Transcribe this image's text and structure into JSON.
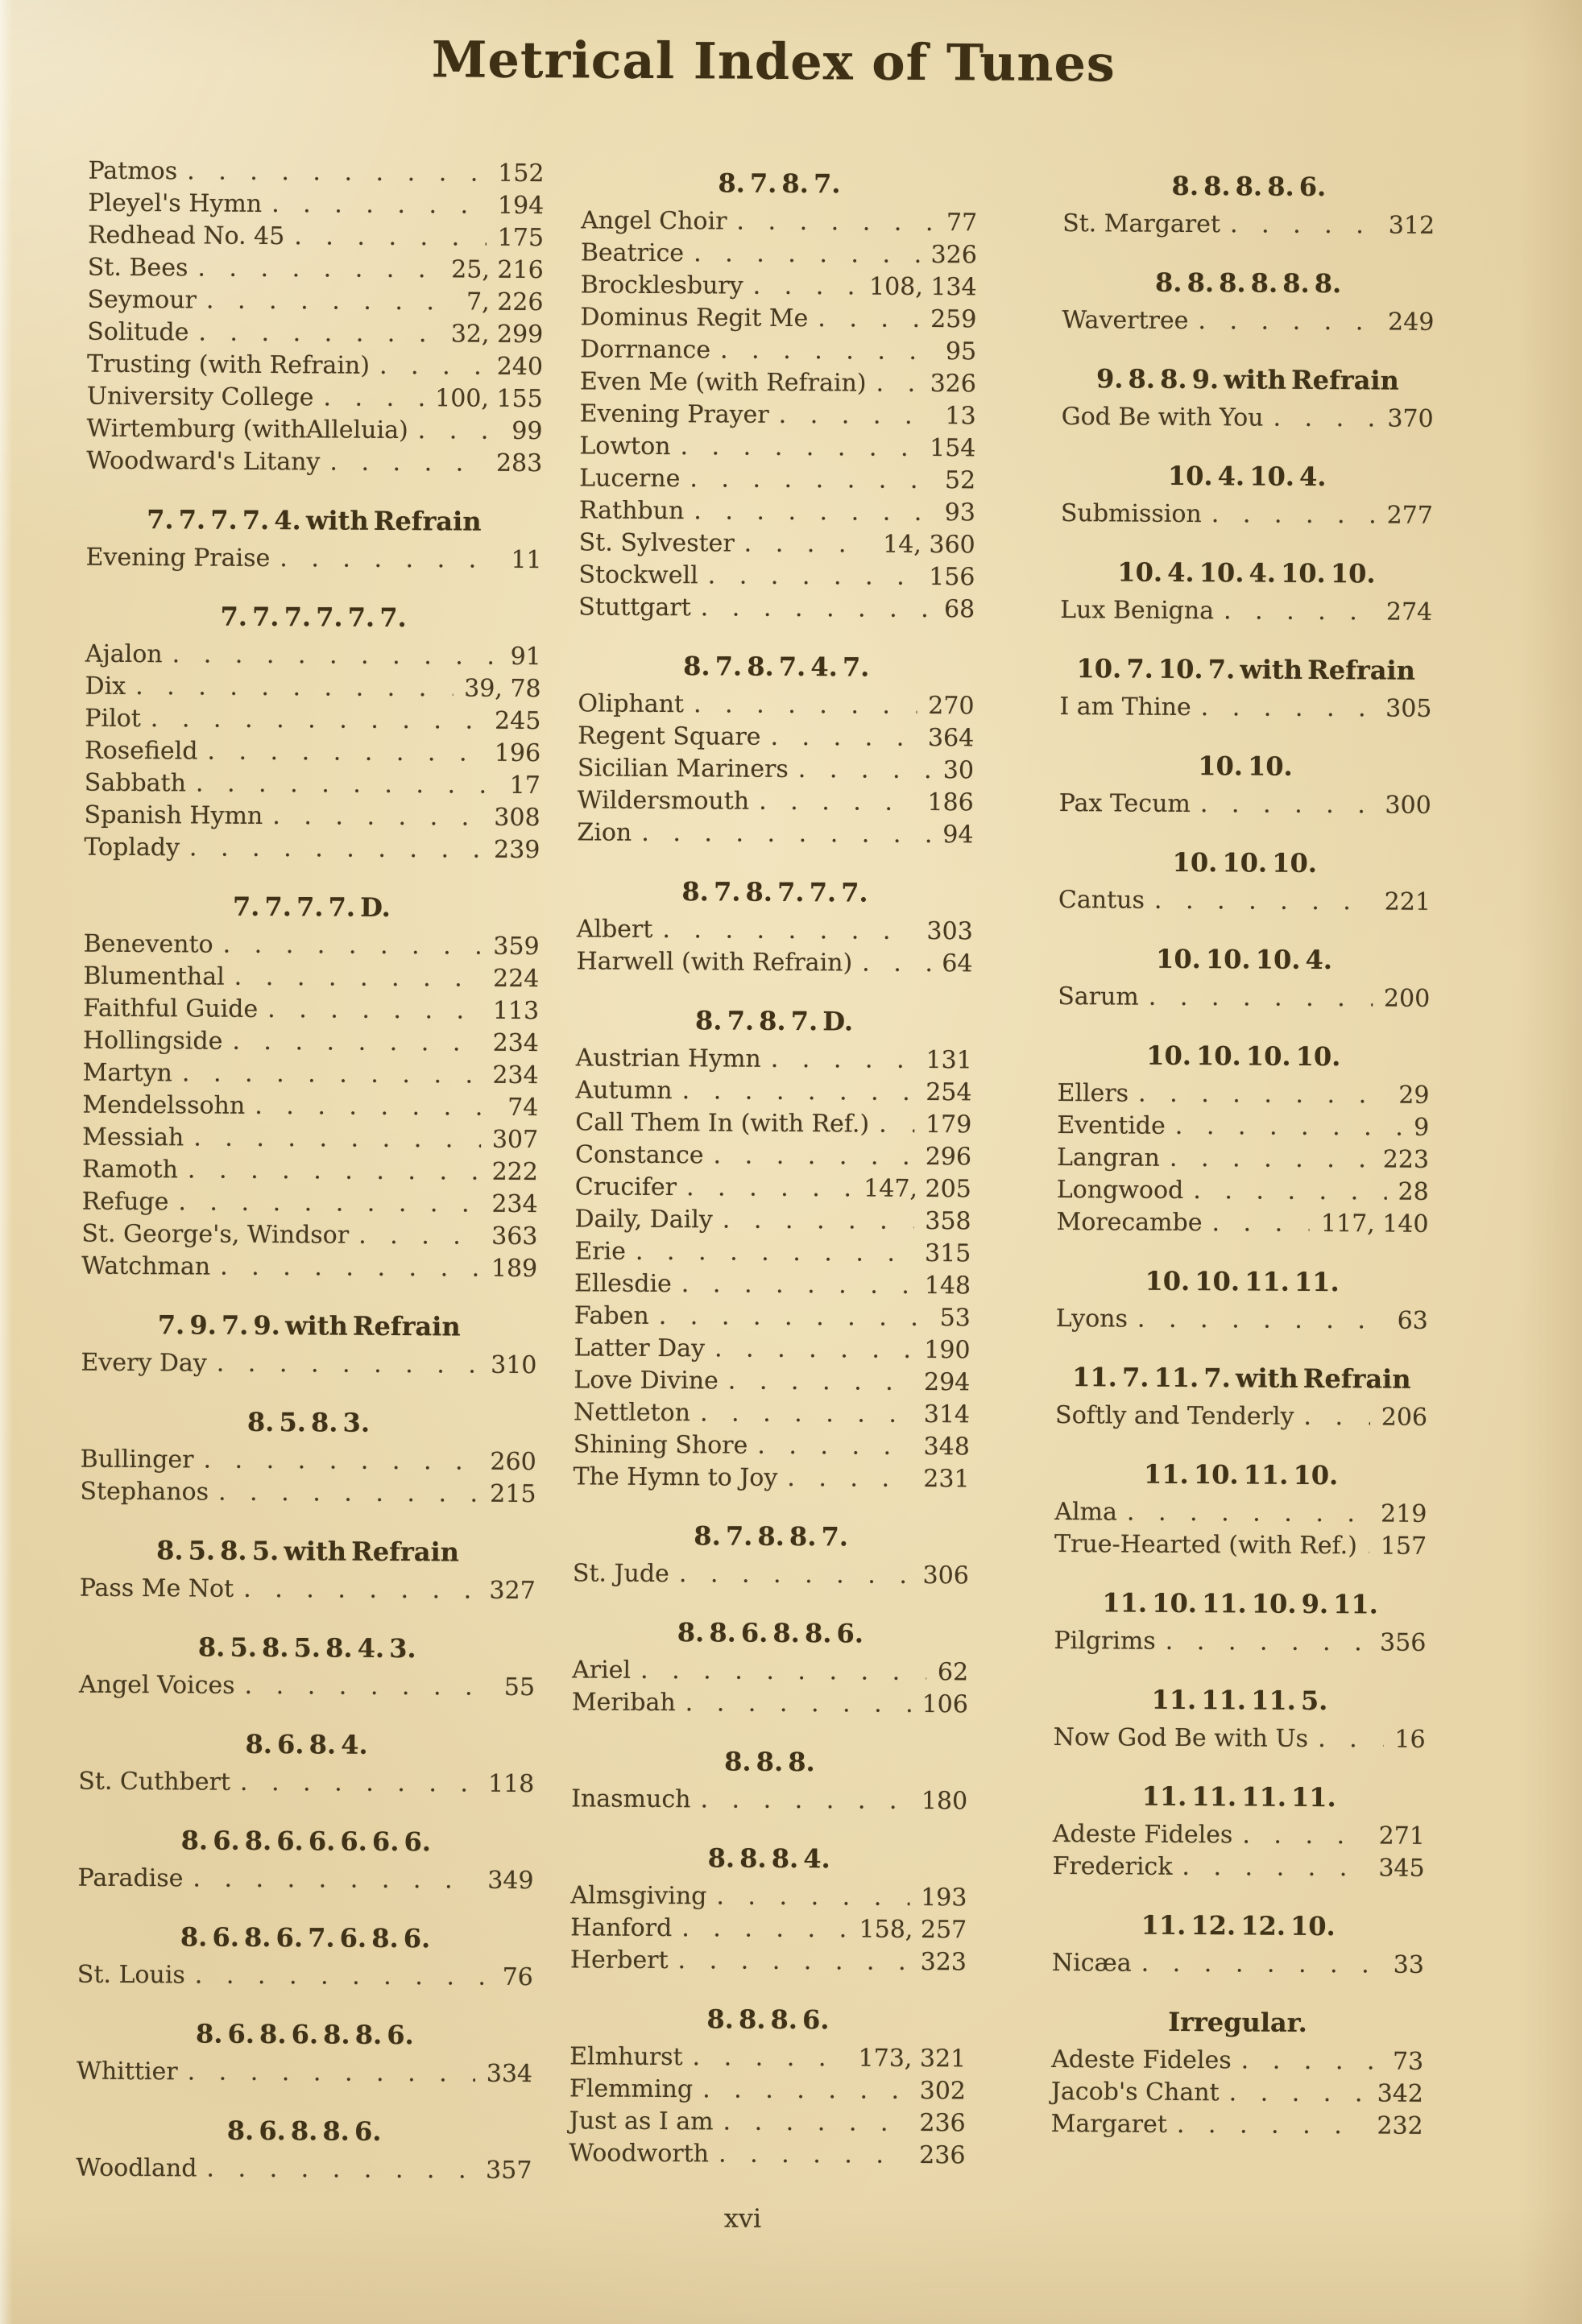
{
  "page": {
    "title": "Metrical Index of Tunes",
    "page_number": "xvi",
    "paper_color": "#e8d6a9",
    "ink_color": "#46391f"
  },
  "columns": [
    {
      "sections": [
        {
          "heading": "",
          "entries": [
            {
              "name": "Patmos",
              "pages": "152"
            },
            {
              "name": "Pleyel's Hymn",
              "pages": "194"
            },
            {
              "name": "Redhead No. 45",
              "pages": "175"
            },
            {
              "name": "St. Bees",
              "pages": "25, 216"
            },
            {
              "name": "Seymour",
              "pages": "7, 226"
            },
            {
              "name": "Solitude",
              "pages": "32, 299"
            },
            {
              "name": "Trusting (with Refrain)",
              "pages": "240"
            },
            {
              "name": "University College",
              "pages": "100, 155"
            },
            {
              "name": "Wirtemburg (withAlleluia)",
              "pages": "99"
            },
            {
              "name": "Woodward's Litany",
              "pages": "283"
            }
          ]
        },
        {
          "heading": "7. 7. 7. 7. 4. with Refrain",
          "entries": [
            {
              "name": "Evening Praise",
              "pages": "11"
            }
          ]
        },
        {
          "heading": "7. 7. 7. 7. 7. 7.",
          "entries": [
            {
              "name": "Ajalon",
              "pages": "91"
            },
            {
              "name": "Dix",
              "pages": "39, 78"
            },
            {
              "name": "Pilot",
              "pages": "245"
            },
            {
              "name": "Rosefield",
              "pages": "196"
            },
            {
              "name": "Sabbath",
              "pages": "17"
            },
            {
              "name": "Spanish Hymn",
              "pages": "308"
            },
            {
              "name": "Toplady",
              "pages": "239"
            }
          ]
        },
        {
          "heading": "7. 7. 7. 7. D.",
          "entries": [
            {
              "name": "Benevento",
              "pages": "359"
            },
            {
              "name": "Blumenthal",
              "pages": "224"
            },
            {
              "name": "Faithful Guide",
              "pages": "113"
            },
            {
              "name": "Hollingside",
              "pages": "234"
            },
            {
              "name": "Martyn",
              "pages": "234"
            },
            {
              "name": "Mendelssohn",
              "pages": "74"
            },
            {
              "name": "Messiah",
              "pages": "307"
            },
            {
              "name": "Ramoth",
              "pages": "222"
            },
            {
              "name": "Refuge",
              "pages": "234"
            },
            {
              "name": "St. George's, Windsor",
              "pages": "363"
            },
            {
              "name": "Watchman",
              "pages": "189"
            }
          ]
        },
        {
          "heading": "7. 9. 7. 9. with Refrain",
          "entries": [
            {
              "name": "Every Day",
              "pages": "310"
            }
          ]
        },
        {
          "heading": "8. 5. 8. 3.",
          "entries": [
            {
              "name": "Bullinger",
              "pages": "260"
            },
            {
              "name": "Stephanos",
              "pages": "215"
            }
          ]
        },
        {
          "heading": "8. 5. 8. 5. with Refrain",
          "entries": [
            {
              "name": "Pass Me Not",
              "pages": "327"
            }
          ]
        },
        {
          "heading": "8. 5. 8. 5. 8. 4. 3.",
          "entries": [
            {
              "name": "Angel Voices",
              "pages": "55"
            }
          ]
        },
        {
          "heading": "8. 6. 8. 4.",
          "entries": [
            {
              "name": "St. Cuthbert",
              "pages": "118"
            }
          ]
        },
        {
          "heading": "8. 6. 8. 6. 6. 6. 6. 6.",
          "entries": [
            {
              "name": "Paradise",
              "pages": "349"
            }
          ]
        },
        {
          "heading": "8. 6. 8. 6. 7. 6. 8. 6.",
          "entries": [
            {
              "name": "St. Louis",
              "pages": "76"
            }
          ]
        },
        {
          "heading": "8. 6. 8. 6. 8. 8. 6.",
          "entries": [
            {
              "name": "Whittier",
              "pages": "334"
            }
          ]
        },
        {
          "heading": "8. 6. 8. 8. 6.",
          "entries": [
            {
              "name": "Woodland",
              "pages": "357"
            }
          ]
        }
      ]
    },
    {
      "sections": [
        {
          "heading": "8. 7. 8. 7.",
          "entries": [
            {
              "name": "Angel Choir",
              "pages": "77"
            },
            {
              "name": "Beatrice",
              "pages": "326"
            },
            {
              "name": "Brocklesbury",
              "pages": "108, 134"
            },
            {
              "name": "Dominus Regit Me",
              "pages": "259"
            },
            {
              "name": "Dorrnance",
              "pages": "95"
            },
            {
              "name": "Even Me (with Refrain)",
              "pages": "326"
            },
            {
              "name": "Evening Prayer",
              "pages": "13"
            },
            {
              "name": "Lowton",
              "pages": "154"
            },
            {
              "name": "Lucerne",
              "pages": "52"
            },
            {
              "name": "Rathbun",
              "pages": "93"
            },
            {
              "name": "St. Sylvester",
              "pages": "14, 360"
            },
            {
              "name": "Stockwell",
              "pages": "156"
            },
            {
              "name": "Stuttgart",
              "pages": "68"
            }
          ]
        },
        {
          "heading": "8. 7. 8. 7. 4. 7.",
          "entries": [
            {
              "name": "Oliphant",
              "pages": "270"
            },
            {
              "name": "Regent Square",
              "pages": "364"
            },
            {
              "name": "Sicilian Mariners",
              "pages": "30"
            },
            {
              "name": "Wildersmouth",
              "pages": "186"
            },
            {
              "name": "Zion",
              "pages": "94"
            }
          ]
        },
        {
          "heading": "8. 7. 8. 7. 7. 7.",
          "entries": [
            {
              "name": "Albert",
              "pages": "303"
            },
            {
              "name": "Harwell (with Refrain)",
              "pages": "64"
            }
          ]
        },
        {
          "heading": "8. 7. 8. 7. D.",
          "entries": [
            {
              "name": "Austrian Hymn",
              "pages": "131"
            },
            {
              "name": "Autumn",
              "pages": "254"
            },
            {
              "name": "Call Them In (with Ref.)",
              "pages": "179"
            },
            {
              "name": "Constance",
              "pages": "296"
            },
            {
              "name": "Crucifer",
              "pages": "147, 205"
            },
            {
              "name": "Daily, Daily",
              "pages": "358"
            },
            {
              "name": "Erie",
              "pages": "315"
            },
            {
              "name": "Ellesdie",
              "pages": "148"
            },
            {
              "name": "Faben",
              "pages": "53"
            },
            {
              "name": "Latter Day",
              "pages": "190"
            },
            {
              "name": "Love Divine",
              "pages": "294"
            },
            {
              "name": "Nettleton",
              "pages": "314"
            },
            {
              "name": "Shining Shore",
              "pages": "348"
            },
            {
              "name": "The Hymn to Joy",
              "pages": "231"
            }
          ]
        },
        {
          "heading": "8. 7. 8. 8. 7.",
          "entries": [
            {
              "name": "St. Jude",
              "pages": "306"
            }
          ]
        },
        {
          "heading": "8. 8. 6. 8. 8. 6.",
          "entries": [
            {
              "name": "Ariel",
              "pages": "62"
            },
            {
              "name": "Meribah",
              "pages": "106"
            }
          ]
        },
        {
          "heading": "8. 8. 8.",
          "entries": [
            {
              "name": "Inasmuch",
              "pages": "180"
            }
          ]
        },
        {
          "heading": "8. 8. 8. 4.",
          "entries": [
            {
              "name": "Almsgiving",
              "pages": "193"
            },
            {
              "name": "Hanford",
              "pages": "158, 257"
            },
            {
              "name": "Herbert",
              "pages": "323"
            }
          ]
        },
        {
          "heading": "8. 8. 8. 6.",
          "entries": [
            {
              "name": "Elmhurst",
              "pages": "173, 321"
            },
            {
              "name": "Flemming",
              "pages": "302"
            },
            {
              "name": "Just as I am",
              "pages": "236"
            },
            {
              "name": "Woodworth",
              "pages": "236"
            }
          ]
        }
      ]
    },
    {
      "sections": [
        {
          "heading": "8. 8. 8. 8. 6.",
          "entries": [
            {
              "name": "St. Margaret",
              "pages": "312"
            }
          ]
        },
        {
          "heading": "8. 8. 8. 8. 8. 8.",
          "entries": [
            {
              "name": "Wavertree",
              "pages": "249"
            }
          ]
        },
        {
          "heading": "9. 8. 8. 9. with Refrain",
          "entries": [
            {
              "name": "God Be with You",
              "pages": "370"
            }
          ]
        },
        {
          "heading": "10. 4. 10. 4.",
          "entries": [
            {
              "name": "Submission",
              "pages": "277"
            }
          ]
        },
        {
          "heading": "10. 4. 10. 4. 10. 10.",
          "entries": [
            {
              "name": "Lux Benigna",
              "pages": "274"
            }
          ]
        },
        {
          "heading": "10. 7. 10. 7. with Refrain",
          "entries": [
            {
              "name": "I am Thine",
              "pages": "305"
            }
          ]
        },
        {
          "heading": "10. 10.",
          "entries": [
            {
              "name": "Pax Tecum",
              "pages": "300"
            }
          ]
        },
        {
          "heading": "10. 10. 10.",
          "entries": [
            {
              "name": "Cantus",
              "pages": "221"
            }
          ]
        },
        {
          "heading": "10. 10. 10. 4.",
          "entries": [
            {
              "name": "Sarum",
              "pages": "200"
            }
          ]
        },
        {
          "heading": "10. 10. 10. 10.",
          "entries": [
            {
              "name": "Ellers",
              "pages": "29"
            },
            {
              "name": "Eventide",
              "pages": "9"
            },
            {
              "name": "Langran",
              "pages": "223"
            },
            {
              "name": "Longwood",
              "pages": "28"
            },
            {
              "name": "Morecambe",
              "pages": "117, 140"
            }
          ]
        },
        {
          "heading": "10. 10. 11. 11.",
          "entries": [
            {
              "name": "Lyons",
              "pages": "63"
            }
          ]
        },
        {
          "heading": "11. 7. 11. 7. with Refrain",
          "entries": [
            {
              "name": "Softly and Tenderly",
              "pages": "206"
            }
          ]
        },
        {
          "heading": "11. 10. 11. 10.",
          "entries": [
            {
              "name": "Alma",
              "pages": "219"
            },
            {
              "name": "True-Hearted (with Ref.)",
              "pages": "157"
            }
          ]
        },
        {
          "heading": "11. 10. 11. 10. 9. 11.",
          "entries": [
            {
              "name": "Pilgrims",
              "pages": "356"
            }
          ]
        },
        {
          "heading": "11. 11. 11. 5.",
          "entries": [
            {
              "name": "Now God Be with Us",
              "pages": "16"
            }
          ]
        },
        {
          "heading": "11. 11. 11. 11.",
          "entries": [
            {
              "name": "Adeste Fideles",
              "pages": "271"
            },
            {
              "name": "Frederick",
              "pages": "345"
            }
          ]
        },
        {
          "heading": "11. 12. 12. 10.",
          "entries": [
            {
              "name": "Nicæa",
              "pages": "33"
            }
          ]
        },
        {
          "heading": "Irregular.",
          "entries": [
            {
              "name": "Adeste Fideles",
              "pages": "73"
            },
            {
              "name": "Jacob's Chant",
              "pages": "342"
            },
            {
              "name": "Margaret",
              "pages": "232"
            }
          ]
        }
      ]
    }
  ]
}
